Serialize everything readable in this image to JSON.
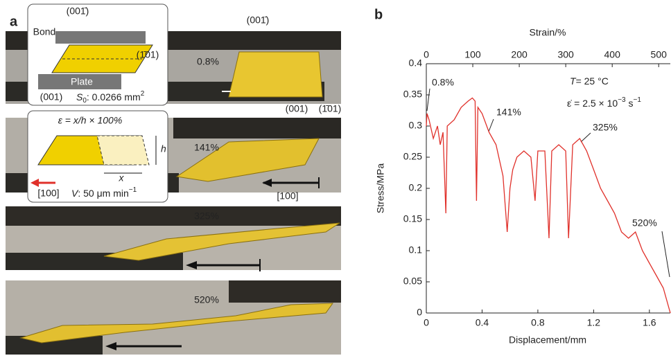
{
  "panel_a": {
    "label": "a",
    "inset_geometry": {
      "top_face": "(001̄)",
      "bond": "Bond",
      "side_face": "(1̄01)",
      "plate": "Plate",
      "bottom_face": "(001)",
      "area": {
        "symbol": "S",
        "sub": "0",
        "rest": ": 0.0266 mm",
        "sup": "2"
      }
    },
    "inset_shear": {
      "formula": "ε = x/h × 100%",
      "h": "h",
      "x": "x",
      "direction": "[100]",
      "speed": {
        "symbol": "V",
        "rest": ": 50 μm min",
        "sup": "−1"
      }
    },
    "photo_labels": {
      "top_face": "(001̄)",
      "bottom_face": "(001)",
      "side_face": "(1̄01)",
      "direction": "[100]"
    },
    "frames": [
      "0.8%",
      "141%",
      "325%",
      "520%"
    ]
  },
  "chart_data": {
    "type": "line",
    "label": "b",
    "xlabel": "Displacement/mm",
    "ylabel": "Stress/MPa",
    "x2label": "Strain/%",
    "xlim": [
      0,
      1.75
    ],
    "xticks": [
      0,
      0.4,
      0.8,
      1.2,
      1.6
    ],
    "x2lim": [
      0,
      525
    ],
    "x2ticks": [
      0,
      100,
      200,
      300,
      400,
      500
    ],
    "ylim": [
      0,
      0.4
    ],
    "yticks": [
      0,
      0.05,
      0.1,
      0.15,
      0.2,
      0.25,
      0.3,
      0.35,
      0.4
    ],
    "x": [
      0,
      0.005,
      0.02,
      0.05,
      0.08,
      0.1,
      0.12,
      0.14,
      0.15,
      0.2,
      0.25,
      0.3,
      0.33,
      0.35,
      0.36,
      0.37,
      0.4,
      0.45,
      0.5,
      0.55,
      0.58,
      0.6,
      0.62,
      0.65,
      0.7,
      0.75,
      0.78,
      0.8,
      0.85,
      0.88,
      0.9,
      0.95,
      1.0,
      1.02,
      1.05,
      1.1,
      1.15,
      1.2,
      1.25,
      1.3,
      1.35,
      1.4,
      1.45,
      1.5,
      1.55,
      1.6,
      1.65,
      1.7,
      1.75
    ],
    "series": [
      {
        "color": "#e0302a",
        "values": [
          0.3,
          0.32,
          0.31,
          0.28,
          0.3,
          0.27,
          0.29,
          0.16,
          0.3,
          0.31,
          0.33,
          0.34,
          0.345,
          0.34,
          0.18,
          0.33,
          0.32,
          0.29,
          0.27,
          0.22,
          0.13,
          0.2,
          0.23,
          0.25,
          0.26,
          0.25,
          0.18,
          0.26,
          0.26,
          0.12,
          0.26,
          0.27,
          0.26,
          0.12,
          0.27,
          0.28,
          0.26,
          0.23,
          0.2,
          0.18,
          0.16,
          0.13,
          0.12,
          0.13,
          0.1,
          0.08,
          0.06,
          0.04,
          0
        ]
      }
    ],
    "annotations": [
      "0.8%",
      "141%",
      "325%",
      "520%"
    ],
    "temperature": {
      "symbol": "T",
      "rest": "= 25 °C"
    },
    "rate": {
      "lhs": "ε̇ = 2.5 × 10",
      "exp": "−3",
      "unit": " s",
      "unit_exp": "−1"
    }
  }
}
